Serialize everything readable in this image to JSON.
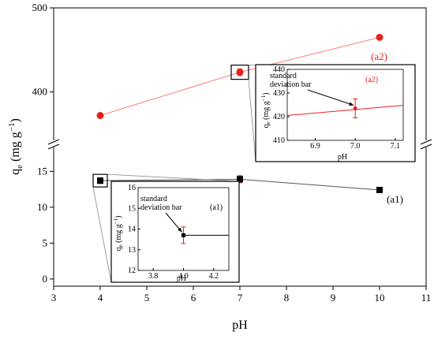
{
  "chart_data": {
    "type": "scatter",
    "title": "",
    "xlabel": "pH",
    "ylabel": {
      "main": "q",
      "sub": "e",
      "unit_open": " (mg g",
      "unit_sup": "−1",
      "unit_close": ")"
    },
    "xlim": [
      3,
      11
    ],
    "x_ticks": [
      "3",
      "4",
      "5",
      "6",
      "7",
      "8",
      "9",
      "10",
      "11"
    ],
    "y_lower": {
      "ylim": [
        -1,
        18
      ],
      "ticks": [
        "0",
        "5",
        "10",
        "15"
      ]
    },
    "y_upper": {
      "ylim": [
        350,
        500
      ],
      "ticks": [
        "400",
        "500"
      ]
    },
    "axis_break": true,
    "series": [
      {
        "name": "(a1)",
        "color": "#000000",
        "marker": "square",
        "points": [
          {
            "x": 4,
            "y": 13.7,
            "err": 0.4
          },
          {
            "x": 7,
            "y": 13.9,
            "err": 0.5
          },
          {
            "x": 10,
            "y": 12.4,
            "err": 0.2
          }
        ]
      },
      {
        "name": "(a2)",
        "color": "#e8201c",
        "marker": "circle",
        "points": [
          {
            "x": 4,
            "y": 372,
            "err": 2
          },
          {
            "x": 7,
            "y": 423.5,
            "err": 4
          },
          {
            "x": 10,
            "y": 465,
            "err": 2
          }
        ]
      }
    ],
    "insets": [
      {
        "series_label": "(a1)",
        "annotation": [
          "standard",
          "deviation bar"
        ],
        "xlabel": "pH",
        "ylabel": {
          "main": "q",
          "sub": "e",
          "unit_open": " (mg g",
          "unit_sup": "−1",
          "unit_close": ")"
        },
        "xlim": [
          3.7,
          4.3
        ],
        "ylim": [
          12,
          16
        ],
        "x_ticks": [
          "3.8",
          "4.0",
          "4.2"
        ],
        "y_ticks": [
          "12",
          "13",
          "14",
          "15",
          "16"
        ],
        "point": {
          "x": 4.0,
          "y": 13.7,
          "err": 0.4
        }
      },
      {
        "series_label": "(a2)",
        "annotation": [
          "standard",
          "deviation bar"
        ],
        "xlabel": "pH",
        "ylabel": {
          "main": "q",
          "sub": "e",
          "unit_open": " (mg g",
          "unit_sup": "−1",
          "unit_close": ")"
        },
        "xlim": [
          6.83,
          7.12
        ],
        "ylim": [
          410,
          440
        ],
        "x_ticks": [
          "6.9",
          "7.0",
          "7.1"
        ],
        "y_ticks": [
          "410",
          "420",
          "430",
          "440"
        ],
        "point": {
          "x": 7.0,
          "y": 423.5,
          "err": 4
        }
      }
    ]
  }
}
